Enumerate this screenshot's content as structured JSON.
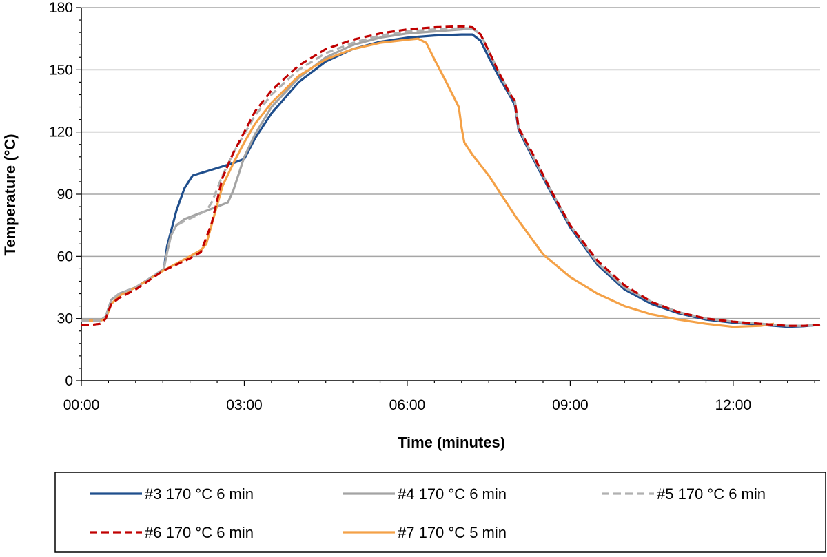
{
  "chart_data": {
    "type": "line",
    "title": "",
    "xlabel": "Time (minutes)",
    "ylabel": "Temperature (°C)",
    "xlim": [
      0,
      13.6
    ],
    "ylim": [
      0,
      180
    ],
    "xticks": [
      0,
      3,
      6,
      9,
      12
    ],
    "xtick_labels": [
      "00:00",
      "03:00",
      "06:00",
      "09:00",
      "12:00"
    ],
    "yticks": [
      0,
      30,
      60,
      90,
      120,
      150,
      180
    ],
    "ytick_labels": [
      "0",
      "30",
      "60",
      "90",
      "120",
      "150",
      "180"
    ],
    "grid": "horizontal",
    "legend_position": "bottom",
    "series": [
      {
        "name": "#3 170 °C 6 min",
        "color": "#1f4e8c",
        "dash": "solid",
        "x": [
          0,
          0.2,
          0.35,
          0.45,
          0.55,
          0.7,
          1.0,
          1.3,
          1.52,
          1.58,
          1.75,
          1.9,
          2.05,
          2.3,
          2.55,
          2.8,
          3.0,
          3.2,
          3.5,
          4.0,
          4.5,
          5.0,
          5.5,
          6.0,
          6.5,
          7.0,
          7.2,
          7.35,
          7.5,
          7.7,
          7.9,
          7.98,
          8.05,
          8.3,
          8.6,
          9.0,
          9.5,
          10.0,
          10.5,
          11.0,
          11.5,
          12.0,
          12.5,
          13.0,
          13.3,
          13.6
        ],
        "y": [
          29,
          29,
          29,
          31,
          39,
          42,
          45,
          50,
          54,
          65,
          82,
          93,
          99,
          101,
          103,
          105,
          107,
          117,
          129,
          144,
          154,
          160,
          163.5,
          165.5,
          166.5,
          167,
          167,
          164,
          156,
          146,
          137,
          133,
          121,
          108,
          93,
          74,
          56,
          44,
          37,
          32.5,
          29.5,
          28,
          27,
          26,
          26.3,
          27
        ]
      },
      {
        "name": "#4 170 °C 6 min",
        "color": "#a3a3a3",
        "dash": "solid",
        "x": [
          0,
          0.2,
          0.35,
          0.45,
          0.55,
          0.7,
          1.0,
          1.3,
          1.52,
          1.58,
          1.65,
          1.75,
          1.9,
          2.1,
          2.3,
          2.5,
          2.7,
          2.8,
          3.0,
          3.2,
          3.5,
          4.0,
          4.5,
          5.0,
          5.5,
          6.0,
          6.5,
          7.0,
          7.2,
          7.35,
          7.5,
          7.7,
          7.9,
          7.98,
          8.05,
          8.3,
          8.6,
          9.0,
          9.5,
          10.0,
          10.5,
          11.0,
          11.5,
          12.0,
          12.5,
          13.0,
          13.3,
          13.6
        ],
        "y": [
          29,
          29,
          29,
          31,
          39,
          42,
          45,
          50,
          54,
          62,
          70,
          75,
          78,
          80,
          82,
          84,
          86,
          92,
          108,
          119,
          132,
          146,
          156,
          162,
          165.5,
          167.5,
          168.5,
          169.5,
          170,
          167,
          159,
          148,
          138,
          135,
          122,
          109,
          94,
          75,
          57,
          45,
          38,
          33,
          30,
          28.5,
          27.5,
          26.5,
          26.5,
          27
        ]
      },
      {
        "name": "#5 170 °C 6 min",
        "color": "#b0b0b0",
        "dash": "dashed",
        "x": [
          0,
          0.2,
          0.35,
          0.45,
          0.55,
          0.7,
          1.0,
          1.3,
          1.52,
          1.58,
          1.65,
          1.75,
          1.9,
          2.1,
          2.3,
          2.4,
          2.6,
          2.8,
          3.0,
          3.2,
          3.5,
          4.0,
          4.5,
          5.0,
          5.5,
          6.0,
          6.5,
          7.0,
          7.2,
          7.35,
          7.5,
          7.7,
          7.9,
          7.98,
          8.05,
          8.3,
          8.6,
          9.0,
          9.5,
          10.0,
          10.5,
          11.0,
          11.5,
          12.0,
          12.5,
          13.0,
          13.3,
          13.6
        ],
        "y": [
          29,
          29,
          29,
          31,
          39,
          42,
          45,
          50,
          54,
          62,
          70,
          75,
          77,
          79.5,
          82,
          86,
          99,
          110,
          119,
          128,
          138,
          150,
          158,
          163,
          166.5,
          168.5,
          169.5,
          170,
          170,
          167,
          159,
          148,
          138,
          135,
          122,
          109,
          94,
          75,
          57,
          45,
          38,
          33,
          30,
          28.5,
          27.5,
          26.5,
          26.5,
          27
        ]
      },
      {
        "name": "#6 170 °C 6 min",
        "color": "#c00000",
        "dash": "dashed",
        "x": [
          0,
          0.2,
          0.35,
          0.45,
          0.55,
          0.7,
          1.0,
          1.5,
          2.0,
          2.2,
          2.4,
          2.6,
          2.8,
          3.0,
          3.2,
          3.5,
          4.0,
          4.5,
          5.0,
          5.5,
          6.0,
          6.5,
          7.0,
          7.2,
          7.35,
          7.5,
          7.7,
          7.9,
          7.98,
          8.05,
          8.3,
          8.6,
          9.0,
          9.5,
          10.0,
          10.5,
          11.0,
          11.5,
          12.0,
          12.5,
          13.0,
          13.3,
          13.6
        ],
        "y": [
          27,
          27,
          27.5,
          30,
          37,
          40,
          44,
          53,
          59,
          62,
          76,
          98,
          110,
          120,
          130,
          140,
          152,
          160,
          164.5,
          167.5,
          169.5,
          170.5,
          171,
          170.5,
          167,
          159,
          148,
          138,
          135,
          122,
          110,
          94,
          75,
          58,
          46,
          38,
          33,
          30,
          28.5,
          27.5,
          26.5,
          26.5,
          27
        ]
      },
      {
        "name": "#7 170 °C 5 min",
        "color": "#f4a147",
        "dash": "solid",
        "x": [
          0,
          0.2,
          0.35,
          0.45,
          0.55,
          0.7,
          1.0,
          1.5,
          2.0,
          2.2,
          2.3,
          2.45,
          2.6,
          2.8,
          3.0,
          3.2,
          3.5,
          4.0,
          4.5,
          5.0,
          5.5,
          6.0,
          6.2,
          6.35,
          6.5,
          6.7,
          6.95,
          7.0,
          7.05,
          7.2,
          7.5,
          7.7,
          8.0,
          8.5,
          9.0,
          9.5,
          10.0,
          10.5,
          11.0,
          11.5,
          12.0,
          12.5,
          12.75
        ],
        "y": [
          29,
          29,
          29,
          30,
          37,
          41,
          45,
          53,
          60,
          63,
          66,
          80,
          94,
          105,
          115,
          124,
          134,
          147,
          155,
          160,
          163,
          164.5,
          165,
          163,
          155,
          145,
          132,
          122,
          115,
          109,
          99,
          91,
          79,
          61,
          50,
          42,
          36,
          32,
          29.5,
          27.5,
          26,
          26.5,
          27.5
        ]
      }
    ]
  }
}
